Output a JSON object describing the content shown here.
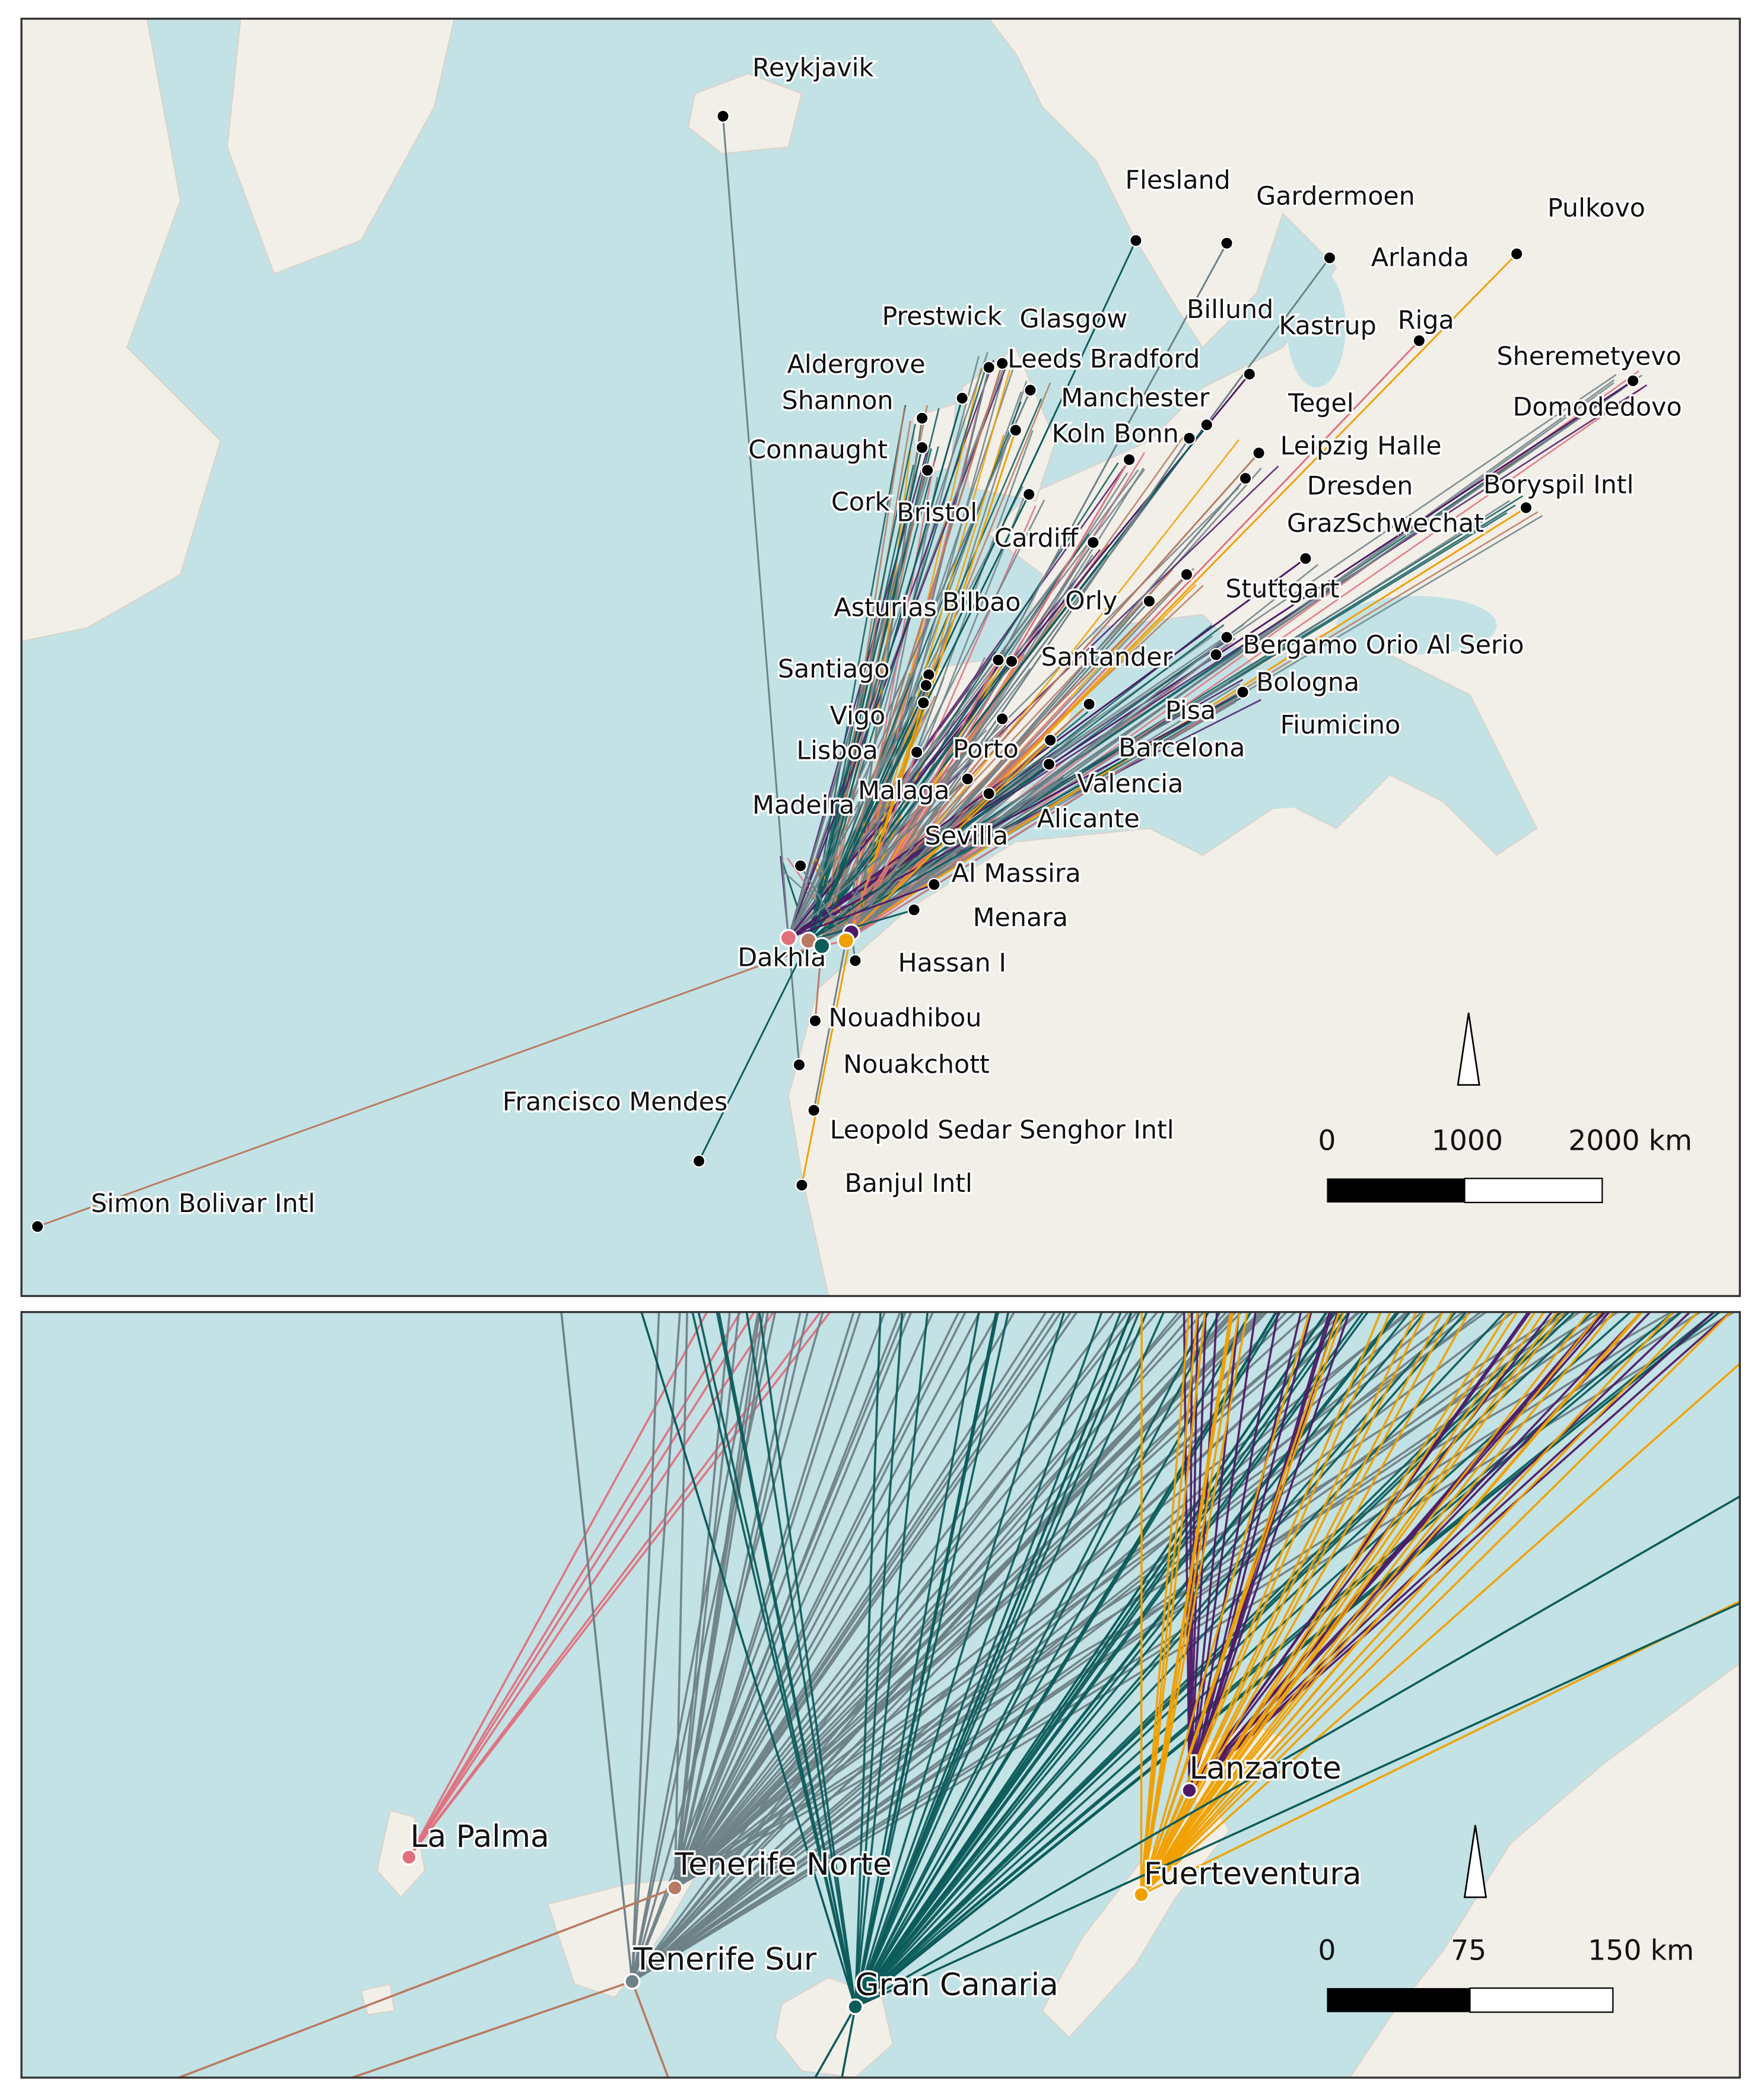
{
  "top_map": {
    "airports": [
      "Reykjavik",
      "Flesland",
      "Gardermoen",
      "Pulkovo",
      "Arlanda",
      "Billund",
      "Kastrup",
      "Riga",
      "Prestwick",
      "Glasgow",
      "Leeds Bradford",
      "Aldergrove",
      "Shannon",
      "Manchester",
      "Sheremetyevo",
      "Domodedovo",
      "Connaught",
      "Koln Bonn",
      "Tegel",
      "Leipzig Halle",
      "Cork",
      "Bristol",
      "Dresden",
      "Boryspil Intl",
      "Cardiff",
      "GrazSchwechat",
      "Asturias",
      "Bilbao",
      "Orly",
      "Stuttgart",
      "Santiago",
      "Santander",
      "Bergamo Orio Al Serio",
      "Vigo",
      "Bologna",
      "Pisa",
      "Fiumicino",
      "Lisboa",
      "Porto",
      "Barcelona",
      "Malaga",
      "Valencia",
      "Madeira",
      "Alicante",
      "Sevilla",
      "Al Massira",
      "Menara",
      "Dakhla",
      "Hassan I",
      "Nouadhibou",
      "Nouakchott",
      "Francisco Mendes",
      "Leopold Sedar Senghor Intl",
      "Banjul Intl",
      "Simon Bolivar Intl"
    ],
    "scale": {
      "labels": [
        "0",
        "1000",
        "2000 km"
      ]
    }
  },
  "bottom_map": {
    "airports": [
      "La Palma",
      "Tenerife Norte",
      "Tenerife Sur",
      "Gran Canaria",
      "Lanzarote",
      "Fuerteventura"
    ],
    "scale": {
      "labels": [
        "0",
        "75",
        "150 km"
      ]
    }
  }
}
